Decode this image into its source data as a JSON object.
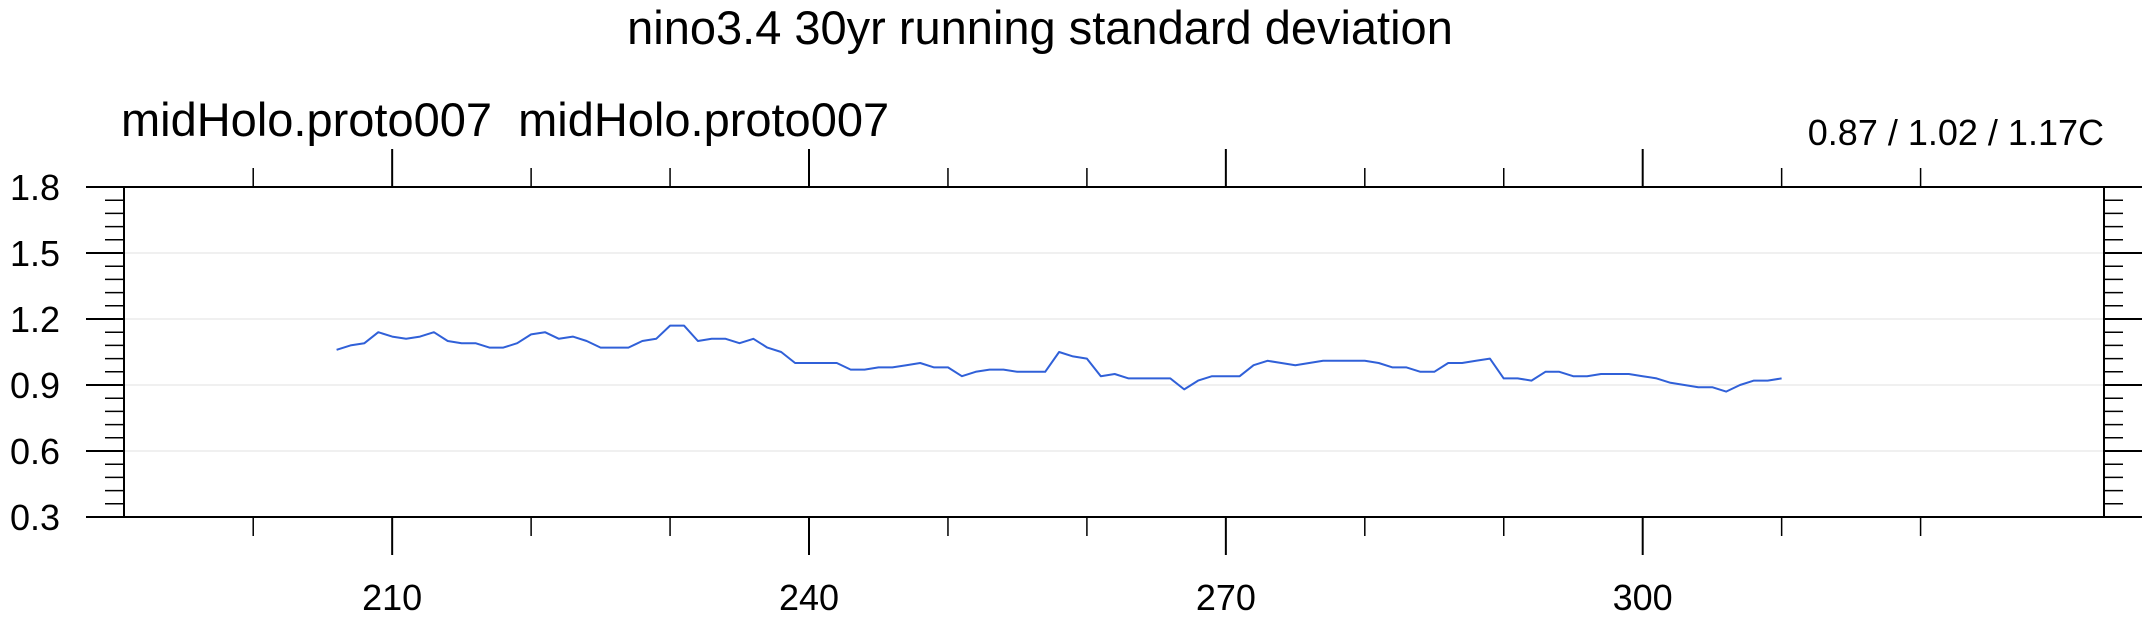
{
  "chart_data": {
    "type": "line",
    "title": "nino3.4 30yr running standard deviation",
    "left_string": "midHolo.proto007  midHolo.proto007",
    "right_string": "0.87 / 1.02 / 1.17C",
    "xlabel": "",
    "ylabel": "",
    "xlim": [
      190.7,
      333.2
    ],
    "ylim": [
      0.3,
      1.8
    ],
    "x_major_ticks": [
      210,
      240,
      270,
      300
    ],
    "x_minor_ticks": [
      200,
      220,
      230,
      250,
      260,
      280,
      290,
      310,
      320
    ],
    "x_tick_labels": [
      "210",
      "240",
      "270",
      "300"
    ],
    "y_ticks": [
      0.3,
      0.6,
      0.9,
      1.2,
      1.5,
      1.8
    ],
    "y_tick_labels": [
      "0.3",
      "0.6",
      "0.9",
      "1.2",
      "1.5",
      "1.8"
    ],
    "grid": true,
    "series": [
      {
        "color": "#3060d8",
        "x": [
          206,
          207,
          208,
          209,
          210,
          211,
          212,
          213,
          214,
          215,
          216,
          217,
          218,
          219,
          220,
          221,
          222,
          223,
          224,
          225,
          226,
          227,
          228,
          229,
          230,
          231,
          232,
          233,
          234,
          235,
          236,
          237,
          238,
          239,
          240,
          241,
          242,
          243,
          244,
          245,
          246,
          247,
          248,
          249,
          250,
          251,
          252,
          253,
          254,
          255,
          256,
          257,
          258,
          259,
          260,
          261,
          262,
          263,
          264,
          265,
          266,
          267,
          268,
          269,
          270,
          271,
          272,
          273,
          274,
          275,
          276,
          277,
          278,
          279,
          280,
          281,
          282,
          283,
          284,
          285,
          286,
          287,
          288,
          289,
          290,
          291,
          292,
          293,
          294,
          295,
          296,
          297,
          298,
          299,
          300,
          301,
          302,
          303,
          304,
          305,
          306,
          307,
          308,
          309,
          310
        ],
        "y": [
          1.06,
          1.08,
          1.09,
          1.14,
          1.12,
          1.11,
          1.12,
          1.14,
          1.1,
          1.09,
          1.09,
          1.07,
          1.07,
          1.09,
          1.13,
          1.14,
          1.11,
          1.12,
          1.1,
          1.07,
          1.07,
          1.07,
          1.1,
          1.11,
          1.17,
          1.17,
          1.1,
          1.11,
          1.11,
          1.09,
          1.11,
          1.07,
          1.05,
          1.0,
          1.0,
          1.0,
          1.0,
          0.97,
          0.97,
          0.98,
          0.98,
          0.99,
          1.0,
          0.98,
          0.98,
          0.94,
          0.96,
          0.97,
          0.97,
          0.96,
          0.96,
          0.96,
          1.05,
          1.03,
          1.02,
          0.94,
          0.95,
          0.93,
          0.93,
          0.93,
          0.93,
          0.88,
          0.92,
          0.94,
          0.94,
          0.94,
          0.99,
          1.01,
          1.0,
          0.99,
          1.0,
          1.01,
          1.01,
          1.01,
          1.01,
          1.0,
          0.98,
          0.98,
          0.96,
          0.96,
          1.0,
          1.0,
          1.01,
          1.02,
          0.93,
          0.93,
          0.92,
          0.96,
          0.96,
          0.94,
          0.94,
          0.95,
          0.95,
          0.95,
          0.94,
          0.93,
          0.91,
          0.9,
          0.89,
          0.89,
          0.87,
          0.9,
          0.92,
          0.92,
          0.93
        ]
      }
    ]
  }
}
